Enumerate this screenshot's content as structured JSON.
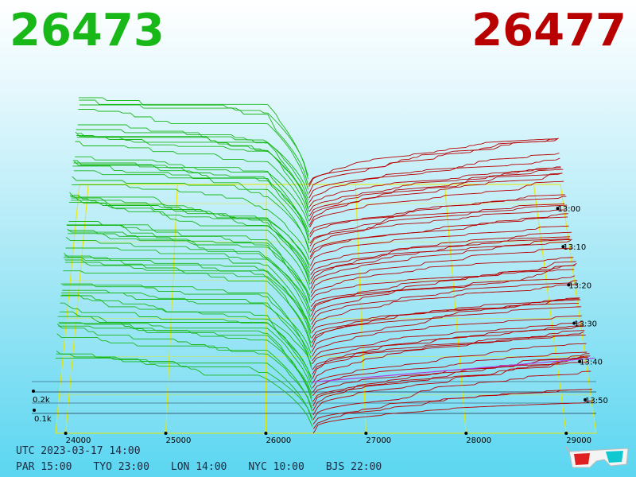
{
  "header": {
    "bid_price": "26473",
    "ask_price": "26477",
    "bid_color": "#18b818",
    "ask_color": "#b80000"
  },
  "footer": {
    "utc_label": "UTC 2023-03-17 14:00",
    "zones": [
      "PAR 15:00",
      "TYO 23:00",
      "LON 14:00",
      "NYC 10:00",
      "BJS 22:00"
    ]
  },
  "chart_data": {
    "type": "area",
    "subtype": "3d-depth-of-market",
    "x_ticks": [
      "24000",
      "25000",
      "26000",
      "27000",
      "28000",
      "29000"
    ],
    "x_range": [
      23900,
      29300
    ],
    "mid_price": 26475,
    "time_ticks": [
      "13:00",
      "13:10",
      "13:20",
      "13:30",
      "13:40",
      "13:50"
    ],
    "time_range": [
      "12:55",
      "14:00"
    ],
    "volume_ticks": [
      "0.1k",
      "0.2k"
    ],
    "volume_unit": "k",
    "bid_color": "#18b818",
    "ask_color": "#b80000",
    "grid_color": "#e8e800",
    "grid": true
  },
  "icons": {
    "glasses": "3d-glasses-icon"
  }
}
